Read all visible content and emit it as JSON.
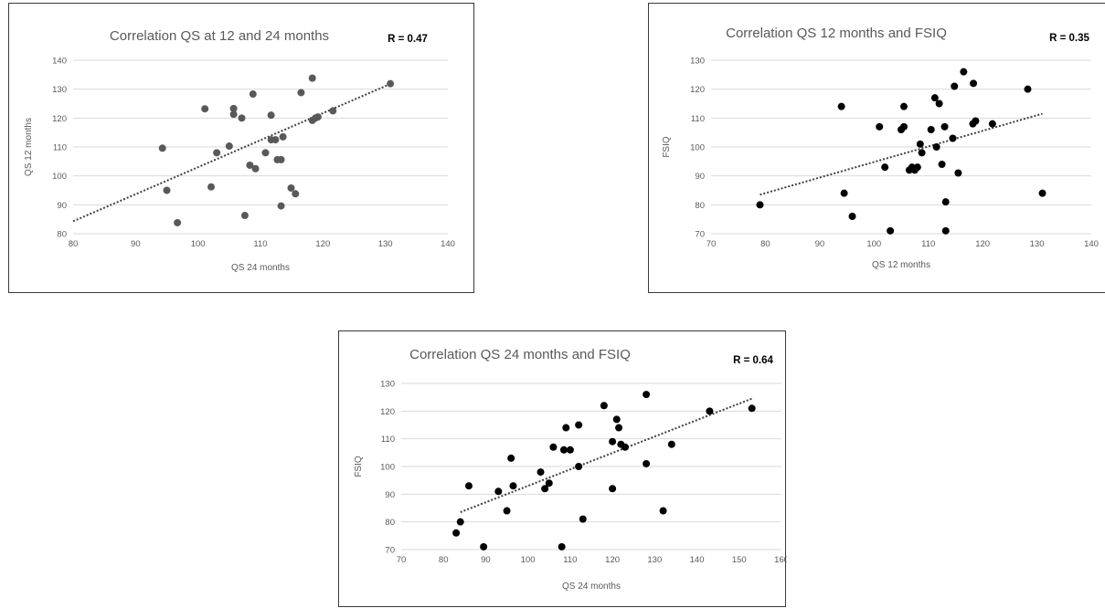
{
  "chart_data": [
    {
      "type": "scatter",
      "title": "Correlation QS at 12 and 24 months",
      "annotation": "R = 0.47",
      "xlabel": "QS 24 months",
      "ylabel": "QS 12 months",
      "xlim": [
        80,
        140
      ],
      "ylim": [
        80,
        140
      ],
      "xticks": [
        80,
        90,
        100,
        110,
        120,
        130,
        140
      ],
      "yticks": [
        80,
        90,
        100,
        110,
        120,
        130,
        140
      ],
      "grid": true,
      "marker_color": "#595959",
      "trendline": {
        "x": [
          80,
          131
        ],
        "y": [
          84.3,
          132
        ]
      },
      "points": [
        [
          94.3,
          109.6
        ],
        [
          95.0,
          95.0
        ],
        [
          96.7,
          83.8
        ],
        [
          101.1,
          123.2
        ],
        [
          102.1,
          96.2
        ],
        [
          103.0,
          108.0
        ],
        [
          105.0,
          110.3
        ],
        [
          105.7,
          123.3
        ],
        [
          105.7,
          121.3
        ],
        [
          107.0,
          120.0
        ],
        [
          107.5,
          86.3
        ],
        [
          108.3,
          103.7
        ],
        [
          108.8,
          128.3
        ],
        [
          109.2,
          102.5
        ],
        [
          110.8,
          108.0
        ],
        [
          111.7,
          121.0
        ],
        [
          111.7,
          112.5
        ],
        [
          112.4,
          112.5
        ],
        [
          112.7,
          105.6
        ],
        [
          113.3,
          105.6
        ],
        [
          113.3,
          89.6
        ],
        [
          113.6,
          113.5
        ],
        [
          114.9,
          95.8
        ],
        [
          115.6,
          93.8
        ],
        [
          116.5,
          128.8
        ],
        [
          118.3,
          133.8
        ],
        [
          118.3,
          119.2
        ],
        [
          118.8,
          120.0
        ],
        [
          119.2,
          120.4
        ],
        [
          121.6,
          122.5
        ],
        [
          130.8,
          131.9
        ]
      ]
    },
    {
      "type": "scatter",
      "title": "Correlation QS 12 months and FSIQ",
      "annotation": "R = 0.35",
      "xlabel": "QS 12 months",
      "ylabel": "FSIQ",
      "xlim": [
        70,
        140
      ],
      "ylim": [
        70,
        130
      ],
      "xticks": [
        70,
        80,
        90,
        100,
        110,
        120,
        130,
        140
      ],
      "yticks": [
        70,
        80,
        90,
        100,
        110,
        120,
        130
      ],
      "grid": true,
      "marker_color": "#000000",
      "trendline": {
        "x": [
          79,
          131
        ],
        "y": [
          83.5,
          111.5
        ]
      },
      "points": [
        [
          79,
          80
        ],
        [
          94,
          114
        ],
        [
          94.5,
          84
        ],
        [
          96,
          76
        ],
        [
          101,
          107
        ],
        [
          102,
          93
        ],
        [
          103,
          71
        ],
        [
          105,
          106
        ],
        [
          105.5,
          107
        ],
        [
          105.5,
          114
        ],
        [
          106.5,
          92
        ],
        [
          107,
          93
        ],
        [
          107.5,
          92
        ],
        [
          108,
          93
        ],
        [
          108.5,
          101
        ],
        [
          108.8,
          98
        ],
        [
          110.5,
          106
        ],
        [
          111.2,
          117
        ],
        [
          111.5,
          100
        ],
        [
          112,
          115
        ],
        [
          112.5,
          94
        ],
        [
          113,
          107
        ],
        [
          113.2,
          81
        ],
        [
          113.2,
          71
        ],
        [
          114.5,
          103
        ],
        [
          114.8,
          121
        ],
        [
          115.5,
          91
        ],
        [
          116.5,
          126
        ],
        [
          118.2,
          108
        ],
        [
          118.3,
          122
        ],
        [
          118.7,
          109
        ],
        [
          121.8,
          108
        ],
        [
          128.3,
          120
        ],
        [
          131,
          84
        ]
      ]
    },
    {
      "type": "scatter",
      "title": "Correlation QS 24 months and FSIQ",
      "annotation": "R = 0.64",
      "xlabel": "QS 24 months",
      "ylabel": "FSIQ",
      "xlim": [
        70,
        160
      ],
      "ylim": [
        70,
        130
      ],
      "xticks": [
        70,
        80,
        90,
        100,
        110,
        120,
        130,
        140,
        150,
        160
      ],
      "yticks": [
        70,
        80,
        90,
        100,
        110,
        120,
        130
      ],
      "grid": true,
      "marker_color": "#000000",
      "trendline": {
        "x": [
          84,
          153
        ],
        "y": [
          83.5,
          124.5
        ]
      },
      "points": [
        [
          83,
          76
        ],
        [
          84,
          80
        ],
        [
          86,
          93
        ],
        [
          89.5,
          71
        ],
        [
          93,
          91
        ],
        [
          95,
          84
        ],
        [
          96,
          103
        ],
        [
          96.5,
          93
        ],
        [
          103,
          98
        ],
        [
          104,
          92
        ],
        [
          105,
          94
        ],
        [
          106,
          107
        ],
        [
          108,
          71
        ],
        [
          108.5,
          106
        ],
        [
          109,
          114
        ],
        [
          110,
          106
        ],
        [
          112,
          115
        ],
        [
          112,
          100
        ],
        [
          113,
          81
        ],
        [
          118,
          122
        ],
        [
          120,
          92
        ],
        [
          120,
          109
        ],
        [
          121,
          117
        ],
        [
          121.5,
          114
        ],
        [
          122,
          108
        ],
        [
          123,
          107
        ],
        [
          128,
          126
        ],
        [
          128,
          101
        ],
        [
          132,
          84
        ],
        [
          134,
          108
        ],
        [
          143,
          120
        ],
        [
          153,
          121
        ]
      ]
    }
  ]
}
